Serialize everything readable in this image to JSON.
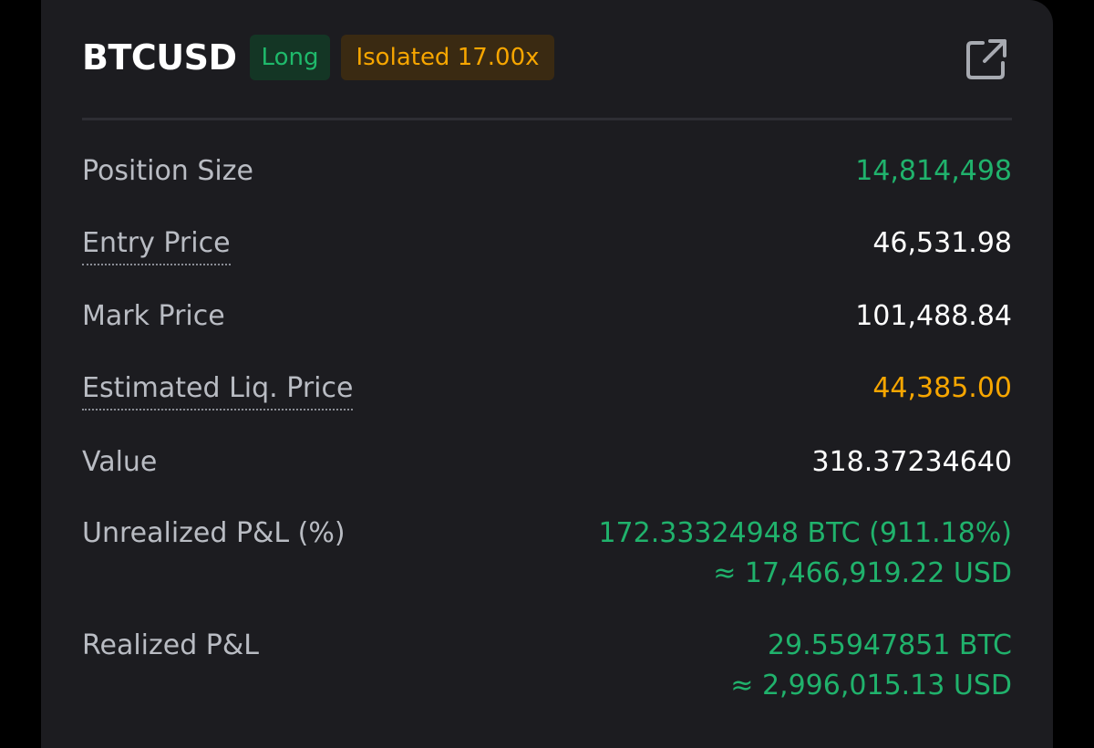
{
  "header": {
    "symbol": "BTCUSD",
    "side_badge": "Long",
    "margin_badge": "Isolated 17.00x",
    "share_icon": "share-external-icon"
  },
  "colors": {
    "positive": "#20b26c",
    "warning": "#f7a600",
    "text_primary": "#ffffff",
    "text_secondary": "#b9bcc3",
    "card_bg": "#1c1c20"
  },
  "rows": {
    "position_size": {
      "label": "Position Size",
      "value": "14,814,498"
    },
    "entry_price": {
      "label": "Entry Price",
      "value": "46,531.98"
    },
    "mark_price": {
      "label": "Mark Price",
      "value": "101,488.84"
    },
    "liq_price": {
      "label": "Estimated Liq. Price",
      "value": "44,385.00"
    },
    "value": {
      "label": "Value",
      "value": "318.37234640"
    },
    "unrealized_pnl": {
      "label": "Unrealized P&L (%)",
      "value": "172.33324948 BTC (911.18%)",
      "usd": "≈ 17,466,919.22 USD"
    },
    "realized_pnl": {
      "label": "Realized P&L",
      "value": "29.55947851 BTC",
      "usd": "≈ 2,996,015.13 USD"
    }
  }
}
